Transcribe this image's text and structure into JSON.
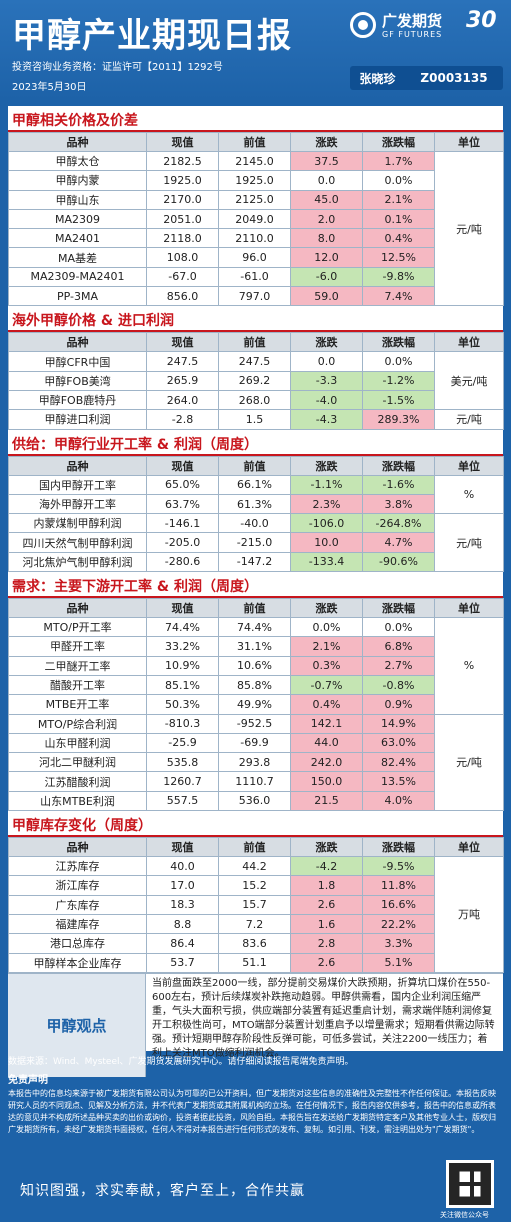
{
  "header": {
    "title": "甲醇产业期现日报",
    "logo_cn": "广发期货",
    "logo_en": "GF FUTURES",
    "logo_badge": "30",
    "license": "投资咨询业务资格：证监许可【2011】1292号",
    "date": "2023年5月30日",
    "analyst_name": "张晓珍",
    "analyst_id": "Z0003135"
  },
  "columns": [
    "品种",
    "现值",
    "前值",
    "涨跌",
    "涨跌幅",
    "单位"
  ],
  "sections": [
    {
      "title": "甲醇相关价格及价差",
      "rows": [
        {
          "name": "甲醇太仓",
          "cur": "2182.5",
          "prev": "2145.0",
          "chg": "37.5",
          "pct": "1.7%",
          "dir": "up"
        },
        {
          "name": "甲醇内蒙",
          "cur": "1925.0",
          "prev": "1925.0",
          "chg": "0.0",
          "pct": "0.0%",
          "dir": "flat"
        },
        {
          "name": "甲醇山东",
          "cur": "2170.0",
          "prev": "2125.0",
          "chg": "45.0",
          "pct": "2.1%",
          "dir": "up"
        },
        {
          "name": "MA2309",
          "cur": "2051.0",
          "prev": "2049.0",
          "chg": "2.0",
          "pct": "0.1%",
          "dir": "up"
        },
        {
          "name": "MA2401",
          "cur": "2118.0",
          "prev": "2110.0",
          "chg": "8.0",
          "pct": "0.4%",
          "dir": "up"
        },
        {
          "name": "MA基差",
          "cur": "108.0",
          "prev": "96.0",
          "chg": "12.0",
          "pct": "12.5%",
          "dir": "up"
        },
        {
          "name": "MA2309-MA2401",
          "cur": "-67.0",
          "prev": "-61.0",
          "chg": "-6.0",
          "pct": "-9.8%",
          "dir": "down"
        },
        {
          "name": "PP-3MA",
          "cur": "856.0",
          "prev": "797.0",
          "chg": "59.0",
          "pct": "7.4%",
          "dir": "up"
        }
      ],
      "units": [
        {
          "label": "元/吨",
          "span": 8
        }
      ]
    },
    {
      "title": "海外甲醇价格 & 进口利润",
      "rows": [
        {
          "name": "甲醇CFR中国",
          "cur": "247.5",
          "prev": "247.5",
          "chg": "0.0",
          "pct": "0.0%",
          "dir": "flat"
        },
        {
          "name": "甲醇FOB美湾",
          "cur": "265.9",
          "prev": "269.2",
          "chg": "-3.3",
          "pct": "-1.2%",
          "dir": "down"
        },
        {
          "name": "甲醇FOB鹿特丹",
          "cur": "264.0",
          "prev": "268.0",
          "chg": "-4.0",
          "pct": "-1.5%",
          "dir": "down"
        },
        {
          "name": "甲醇进口利润",
          "cur": "-2.8",
          "prev": "1.5",
          "chg": "-4.3",
          "pct": "289.3%",
          "dir": "down",
          "pct_dir": "up"
        }
      ],
      "units": [
        {
          "label": "美元/吨",
          "span": 3
        },
        {
          "label": "元/吨",
          "span": 1
        }
      ]
    },
    {
      "title": "供给：甲醇行业开工率 & 利润（周度）",
      "rows": [
        {
          "name": "国内甲醇开工率",
          "cur": "65.0%",
          "prev": "66.1%",
          "chg": "-1.1%",
          "pct": "-1.6%",
          "dir": "down"
        },
        {
          "name": "海外甲醇开工率",
          "cur": "63.7%",
          "prev": "61.3%",
          "chg": "2.3%",
          "pct": "3.8%",
          "dir": "up"
        },
        {
          "name": "内蒙煤制甲醇利润",
          "cur": "-146.1",
          "prev": "-40.0",
          "chg": "-106.0",
          "pct": "-264.8%",
          "dir": "down"
        },
        {
          "name": "四川天然气制甲醇利润",
          "cur": "-205.0",
          "prev": "-215.0",
          "chg": "10.0",
          "pct": "4.7%",
          "dir": "up"
        },
        {
          "name": "河北焦炉气制甲醇利润",
          "cur": "-280.6",
          "prev": "-147.2",
          "chg": "-133.4",
          "pct": "-90.6%",
          "dir": "down"
        }
      ],
      "units": [
        {
          "label": "%",
          "span": 2
        },
        {
          "label": "元/吨",
          "span": 3
        }
      ]
    },
    {
      "title": "需求：主要下游开工率 & 利润（周度）",
      "rows": [
        {
          "name": "MTO/P开工率",
          "cur": "74.4%",
          "prev": "74.4%",
          "chg": "0.0%",
          "pct": "0.0%",
          "dir": "flat"
        },
        {
          "name": "甲醛开工率",
          "cur": "33.2%",
          "prev": "31.1%",
          "chg": "2.1%",
          "pct": "6.8%",
          "dir": "up"
        },
        {
          "name": "二甲醚开工率",
          "cur": "10.9%",
          "prev": "10.6%",
          "chg": "0.3%",
          "pct": "2.7%",
          "dir": "up"
        },
        {
          "name": "醋酸开工率",
          "cur": "85.1%",
          "prev": "85.8%",
          "chg": "-0.7%",
          "pct": "-0.8%",
          "dir": "down"
        },
        {
          "name": "MTBE开工率",
          "cur": "50.3%",
          "prev": "49.9%",
          "chg": "0.4%",
          "pct": "0.9%",
          "dir": "up"
        },
        {
          "name": "MTO/P综合利润",
          "cur": "-810.3",
          "prev": "-952.5",
          "chg": "142.1",
          "pct": "14.9%",
          "dir": "up"
        },
        {
          "name": "山东甲醛利润",
          "cur": "-25.9",
          "prev": "-69.9",
          "chg": "44.0",
          "pct": "63.0%",
          "dir": "up"
        },
        {
          "name": "河北二甲醚利润",
          "cur": "535.8",
          "prev": "293.8",
          "chg": "242.0",
          "pct": "82.4%",
          "dir": "up"
        },
        {
          "name": "江苏醋酸利润",
          "cur": "1260.7",
          "prev": "1110.7",
          "chg": "150.0",
          "pct": "13.5%",
          "dir": "up"
        },
        {
          "name": "山东MTBE利润",
          "cur": "557.5",
          "prev": "536.0",
          "chg": "21.5",
          "pct": "4.0%",
          "dir": "up"
        }
      ],
      "units": [
        {
          "label": "%",
          "span": 5
        },
        {
          "label": "元/吨",
          "span": 5
        }
      ]
    },
    {
      "title": "甲醇库存变化（周度）",
      "rows": [
        {
          "name": "江苏库存",
          "cur": "40.0",
          "prev": "44.2",
          "chg": "-4.2",
          "pct": "-9.5%",
          "dir": "down"
        },
        {
          "name": "浙江库存",
          "cur": "17.0",
          "prev": "15.2",
          "chg": "1.8",
          "pct": "11.8%",
          "dir": "up"
        },
        {
          "name": "广东库存",
          "cur": "18.3",
          "prev": "15.7",
          "chg": "2.6",
          "pct": "16.6%",
          "dir": "up"
        },
        {
          "name": "福建库存",
          "cur": "8.8",
          "prev": "7.2",
          "chg": "1.6",
          "pct": "22.2%",
          "dir": "up"
        },
        {
          "name": "港口总库存",
          "cur": "86.4",
          "prev": "83.6",
          "chg": "2.8",
          "pct": "3.3%",
          "dir": "up"
        },
        {
          "name": "甲醇样本企业库存",
          "cur": "53.7",
          "prev": "51.1",
          "chg": "2.6",
          "pct": "5.1%",
          "dir": "up"
        }
      ],
      "units": [
        {
          "label": "万吨",
          "span": 6
        }
      ]
    }
  ],
  "view": {
    "label": "甲醇观点",
    "text": "当前盘面跌至2000一线，部分提前交易煤价大跌预期，折算坑口煤价在550-600左右，预计后续煤炭补跌拖动趋弱。甲醇供需看，国内企业利润压缩严重，气头大面积亏损，供应端部分装置有延迟重启计划，需求端伴随利润修复开工积极性尚可，MTO端部分装置计划重启予以增量需求；短期看供需边际转强。预计短期甲醇存阶段性反弹可能，可低多尝试，关注2200一线压力；着利上关注MTO做缩利润机会。"
  },
  "footer": {
    "source": "数据来源：Wind、Mysteel、广发期货发展研究中心。请仔细阅读报告尾端免责声明。",
    "disclaimer_title": "免责声明",
    "disclaimer": "本报告中的信息均来源于被广发期货有限公司认为可靠的已公开资料，但广发期货对这些信息的准确性及完整性不作任何保证。本报告反映研究人员的不同观点、见解及分析方法，并不代表广发期货或其附属机构的立场。在任何情况下，报告内容仅供参考，报告中的信息或所表达的意见并不构成所述品种买卖的出价或询价，投资者据此投资，风险自担。本报告旨在发送给广发期货特定客户及其他专业人士，版权归广发期货所有，未经广发期货书面授权，任何人不得对本报告进行任何形式的发布、复制。如引用、刊发，需注明出处为\"广发期货\"。",
    "slogan": "知识图强，求实奉献，客户至上，合作共赢",
    "qr_caption": "关注微信公众号"
  }
}
